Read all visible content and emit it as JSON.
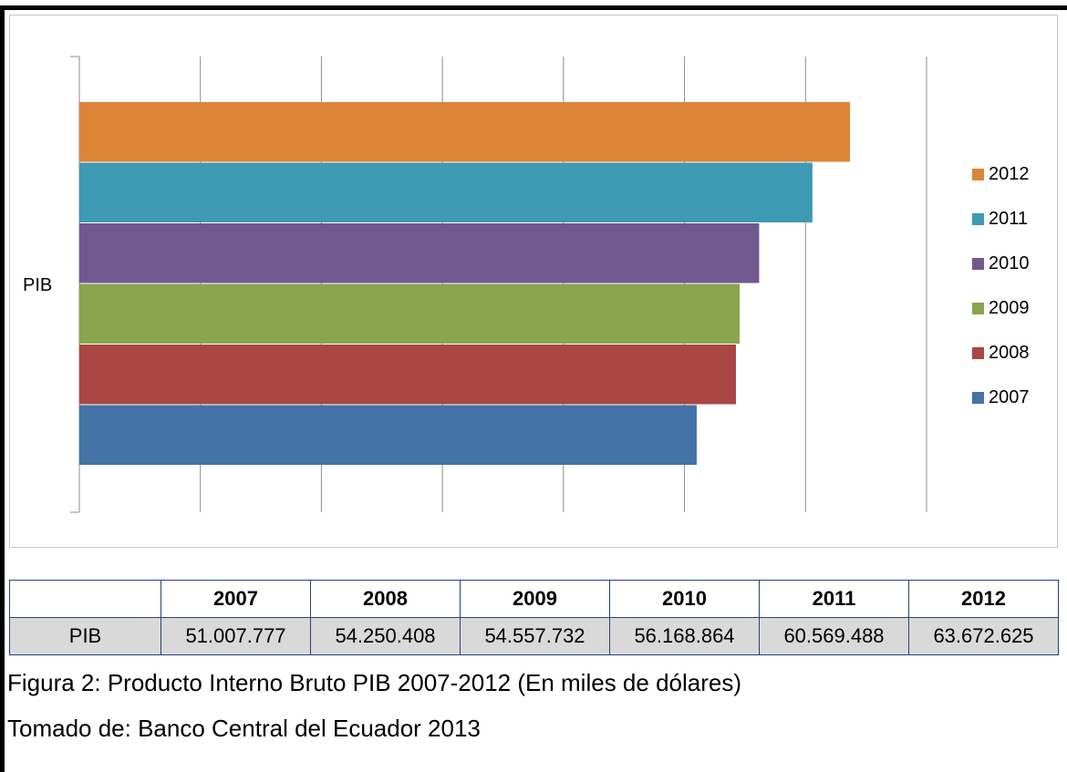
{
  "chart_data": {
    "type": "bar",
    "orientation": "horizontal",
    "categories": [
      "PIB"
    ],
    "series": [
      {
        "name": "2012",
        "values": [
          63672625
        ],
        "color": "#dd8439"
      },
      {
        "name": "2011",
        "values": [
          60569488
        ],
        "color": "#3d9ab2"
      },
      {
        "name": "2010",
        "values": [
          56168864
        ],
        "color": "#71588f"
      },
      {
        "name": "2009",
        "values": [
          54557732
        ],
        "color": "#89a54e"
      },
      {
        "name": "2008",
        "values": [
          54250408
        ],
        "color": "#aa4643"
      },
      {
        "name": "2007",
        "values": [
          51007777
        ],
        "color": "#4572a7"
      }
    ],
    "xlim": [
      0,
      70000000
    ],
    "grid": "vertical",
    "tick_labels_shown": false,
    "legend_position": "right"
  },
  "table": {
    "headers": [
      "",
      "2007",
      "2008",
      "2009",
      "2010",
      "2011",
      "2012"
    ],
    "row_label": "PIB",
    "values": [
      "51.007.777",
      "54.250.408",
      "54.557.732",
      "56.168.864",
      "60.569.488",
      "63.672.625"
    ]
  },
  "caption": {
    "figure": "Figura 2: Producto Interno Bruto PIB 2007-2012 (En miles de dólares)",
    "source": "Tomado de: Banco Central del Ecuador 2013"
  }
}
